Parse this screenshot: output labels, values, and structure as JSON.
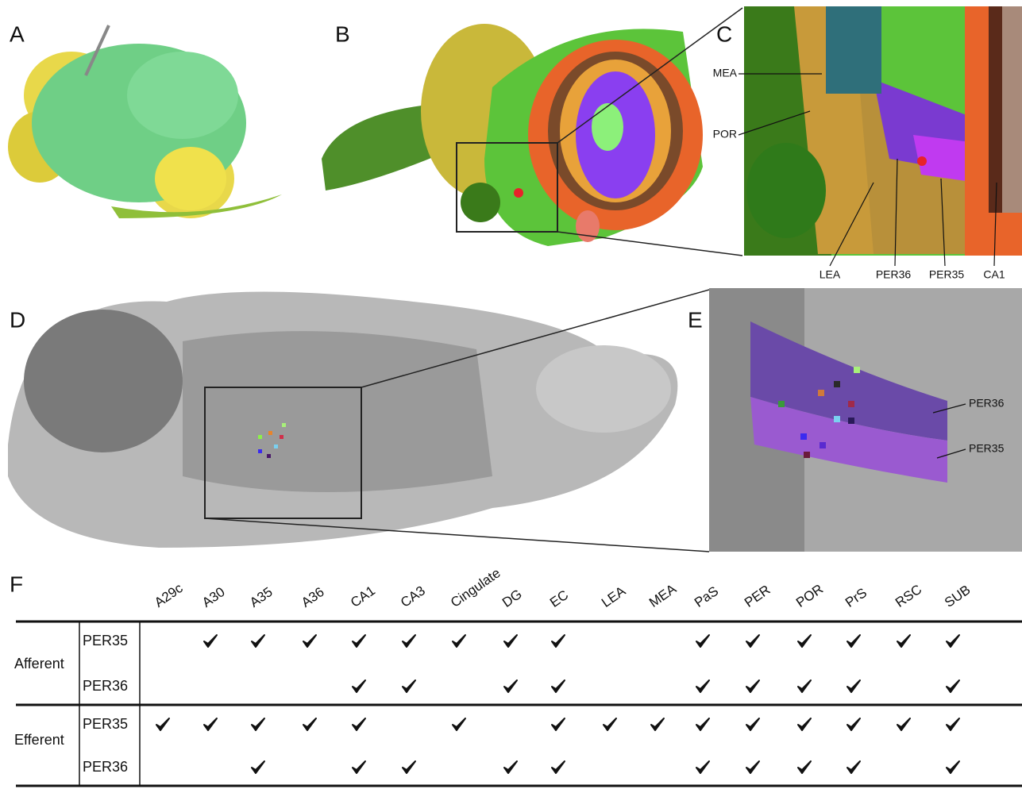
{
  "panel_labels": [
    "A",
    "B",
    "C",
    "D",
    "E",
    "F"
  ],
  "panel_c_labels": [
    "MEA",
    "POR",
    "LEA",
    "PER36",
    "PER35",
    "CA1"
  ],
  "panel_e_labels": [
    "PER36",
    "PER35"
  ],
  "table": {
    "columns": [
      "A29c",
      "A30",
      "A35",
      "A36",
      "CA1",
      "CA3",
      "Cingulate",
      "DG",
      "EC",
      "LEA",
      "MEA",
      "PaS",
      "PER",
      "POR",
      "PrS",
      "RSC",
      "SUB"
    ],
    "groups": [
      {
        "name": "Afferent",
        "rows": [
          {
            "name": "PER35",
            "checked": [
              false,
              true,
              true,
              true,
              true,
              true,
              true,
              true,
              true,
              false,
              false,
              true,
              true,
              true,
              true,
              true,
              true
            ]
          },
          {
            "name": "PER36",
            "checked": [
              false,
              false,
              false,
              false,
              true,
              true,
              false,
              true,
              true,
              false,
              false,
              true,
              true,
              true,
              true,
              false,
              true
            ]
          }
        ]
      },
      {
        "name": "Efferent",
        "rows": [
          {
            "name": "PER35",
            "checked": [
              true,
              true,
              true,
              true,
              true,
              false,
              true,
              false,
              true,
              true,
              true,
              true,
              true,
              true,
              true,
              true,
              true
            ]
          },
          {
            "name": "PER36",
            "checked": [
              false,
              false,
              true,
              false,
              true,
              true,
              false,
              true,
              true,
              false,
              false,
              true,
              true,
              true,
              true,
              false,
              true
            ]
          }
        ]
      }
    ]
  }
}
